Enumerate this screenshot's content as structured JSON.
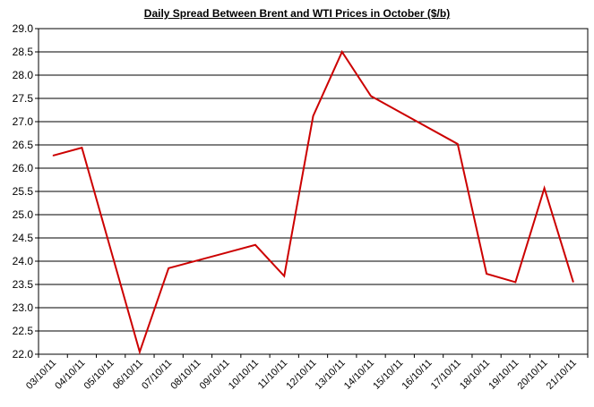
{
  "chart_data": {
    "type": "line",
    "title": "Daily Spread Between Brent and WTI Prices in  October  ($/b)",
    "xlabel": "",
    "ylabel": "",
    "ylim": [
      22.0,
      29.0
    ],
    "ytick_step": 0.5,
    "grid": true,
    "legend": "none",
    "line_color": "#cc0000",
    "categories": [
      "03/10/11",
      "04/10/11",
      "05/10/11",
      "06/10/11",
      "07/10/11",
      "08/10/11",
      "09/10/11",
      "10/10/11",
      "11/10/11",
      "12/10/11",
      "13/10/11",
      "14/10/11",
      "15/10/11",
      "16/10/11",
      "17/10/11",
      "18/10/11",
      "19/10/11",
      "20/10/11",
      "21/10/11"
    ],
    "points": [
      {
        "x": "03/10/11",
        "y": 26.27
      },
      {
        "x": "04/10/11",
        "y": 26.44
      },
      {
        "x": "06/10/11",
        "y": 22.05
      },
      {
        "x": "07/10/11",
        "y": 23.85
      },
      {
        "x": "10/10/11",
        "y": 24.35
      },
      {
        "x": "11/10/11",
        "y": 23.68
      },
      {
        "x": "12/10/11",
        "y": 27.12
      },
      {
        "x": "13/10/11",
        "y": 28.5
      },
      {
        "x": "14/10/11",
        "y": 27.55
      },
      {
        "x": "17/10/11",
        "y": 26.52
      },
      {
        "x": "18/10/11",
        "y": 23.73
      },
      {
        "x": "19/10/11",
        "y": 23.55
      },
      {
        "x": "20/10/11",
        "y": 25.57
      },
      {
        "x": "21/10/11",
        "y": 23.55
      }
    ]
  }
}
